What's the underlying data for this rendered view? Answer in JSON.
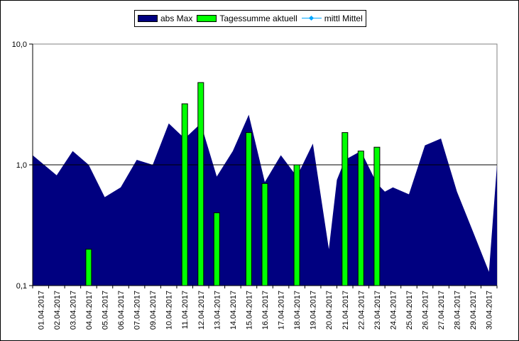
{
  "chart_data": {
    "type": "area",
    "title": "",
    "xlabel": "",
    "ylabel": "",
    "y_scale": "log",
    "ylim": [
      0.1,
      10.0
    ],
    "y_ticks": [
      "0,1",
      "1,0",
      "10,0"
    ],
    "y_tick_values": [
      0.1,
      1.0,
      10.0
    ],
    "categories": [
      "01.04.2017",
      "02.04.2017",
      "03.04.2017",
      "04.04.2017",
      "05.04.2017",
      "06.04.2017",
      "07.04.2017",
      "09.04.2017",
      "10.04.2017",
      "11.04.2017",
      "12.04.2017",
      "13.04.2017",
      "14.04.2017",
      "15.04.2017",
      "16.04.2017",
      "17.04.2017",
      "18.04.2017",
      "19.04.2017",
      "20.04.2017",
      "21.04.2017",
      "22.04.2017",
      "23.04.2017",
      "24.04.2017",
      "25.04.2017",
      "26.04.2017",
      "27.04.2017",
      "28.04.2017",
      "29.04.2017",
      "30.04.2017"
    ],
    "area_points": [
      {
        "x": "01.04.2017",
        "y": 1.2
      },
      {
        "x": "02.04.2017",
        "y": 0.82
      },
      {
        "x": "03.04.2017",
        "y": 1.3
      },
      {
        "x": "04.04.2017",
        "y": 1.0
      },
      {
        "x": "05.04.2017",
        "y": 0.54
      },
      {
        "x": "06.04.2017",
        "y": 0.65
      },
      {
        "x": "07.04.2017",
        "y": 1.1
      },
      {
        "x": "09.04.2017",
        "y": 1.0
      },
      {
        "x": "10.04.2017",
        "y": 2.2
      },
      {
        "x": "11.04.2017",
        "y": 1.65
      },
      {
        "x": "12.04.2017",
        "y": 2.2
      },
      {
        "x": "13.04.2017",
        "y": 0.8
      },
      {
        "x": "14.04.2017",
        "y": 1.3
      },
      {
        "x": "15.04.2017",
        "y": 2.6
      },
      {
        "x": "16.04.2017",
        "y": 0.72
      },
      {
        "x": "17.04.2017",
        "y": 1.2
      },
      {
        "x": "18.04.2017",
        "y": 0.8
      },
      {
        "x": "19.04.2017",
        "y": 1.5
      },
      {
        "x": "20.04.2017",
        "y": 0.2
      },
      {
        "x": "20.04.2017",
        "y": 0.75
      },
      {
        "x": "21.04.2017",
        "y": 1.1
      },
      {
        "x": "22.04.2017",
        "y": 1.3
      },
      {
        "x": "23.04.2017",
        "y": 0.7
      },
      {
        "x": "23.04.2017",
        "y": 0.6
      },
      {
        "x": "24.04.2017",
        "y": 0.65
      },
      {
        "x": "25.04.2017",
        "y": 0.57
      },
      {
        "x": "26.04.2017",
        "y": 1.45
      },
      {
        "x": "27.04.2017",
        "y": 1.65
      },
      {
        "x": "28.04.2017",
        "y": 0.6
      },
      {
        "x": "29.04.2017",
        "y": 0.28
      },
      {
        "x": "30.04.2017",
        "y": 0.13
      },
      {
        "x": "30.04.2017",
        "y": 1.0
      }
    ],
    "bar_values": [
      {
        "x": "04.04.2017",
        "y": 0.2
      },
      {
        "x": "11.04.2017",
        "y": 3.2
      },
      {
        "x": "12.04.2017",
        "y": 4.8
      },
      {
        "x": "13.04.2017",
        "y": 0.4
      },
      {
        "x": "15.04.2017",
        "y": 1.85
      },
      {
        "x": "16.04.2017",
        "y": 0.7
      },
      {
        "x": "18.04.2017",
        "y": 1.0
      },
      {
        "x": "21.04.2017",
        "y": 1.85
      },
      {
        "x": "22.04.2017",
        "y": 1.3
      },
      {
        "x": "23.04.2017",
        "y": 1.4
      }
    ],
    "legend": {
      "position": "top-center",
      "items": [
        {
          "name": "abs Max",
          "color": "#000080",
          "kind": "area"
        },
        {
          "name": "Tagessumme aktuell",
          "color": "#00ff00",
          "kind": "bar"
        },
        {
          "name": "mittl Mittel",
          "color": "#00a6ff",
          "kind": "line"
        }
      ]
    },
    "reference_line": 1.0,
    "grid": false
  }
}
